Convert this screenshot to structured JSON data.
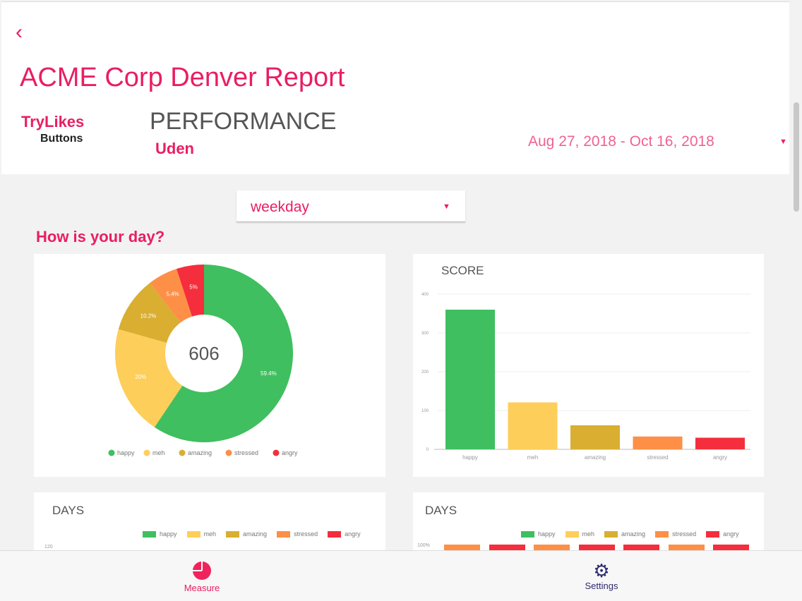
{
  "header": {
    "back_icon": "chevron-left-icon",
    "title": "ACME Corp Denver Report",
    "logo_line1": "TryLikes",
    "logo_line2": "Buttons",
    "section": "PERFORMANCE",
    "location": "Uden",
    "date_range": "Aug 27, 2018 - Oct 16, 2018"
  },
  "filter": {
    "selected": "weekday"
  },
  "question": "How is your day?",
  "colors": {
    "happy": "#3fbf5f",
    "meh": "#fdce5a",
    "amazing": "#d9ae31",
    "stressed": "#fd8f47",
    "angry": "#f42e3c",
    "accent": "#e91e63"
  },
  "chart_data": [
    {
      "type": "pie",
      "title": "",
      "total_label": "606",
      "categories": [
        "happy",
        "meh",
        "amazing",
        "stressed",
        "angry"
      ],
      "values": [
        59.4,
        20,
        10.2,
        5.4,
        5
      ],
      "labels": [
        "59.4%",
        "20%",
        "10.2%",
        "5.4%",
        "5%"
      ]
    },
    {
      "type": "bar",
      "title": "SCORE",
      "categories": [
        "happy",
        "meh",
        "amazing",
        "stressed",
        "angry"
      ],
      "values": [
        360,
        121,
        62,
        33,
        30
      ],
      "ylim": [
        0,
        400
      ],
      "yticks": [
        "0",
        "100",
        "200",
        "300",
        "400"
      ]
    },
    {
      "type": "bar",
      "title": "DAYS",
      "legend": [
        "happy",
        "meh",
        "amazing",
        "stressed",
        "angry"
      ],
      "ytick_top": "120"
    },
    {
      "type": "bar",
      "title": "DAYS",
      "legend": [
        "happy",
        "meh",
        "amazing",
        "stressed",
        "angry"
      ],
      "ytick_top": "100%"
    }
  ],
  "nav": {
    "measure": "Measure",
    "settings": "Settings"
  }
}
